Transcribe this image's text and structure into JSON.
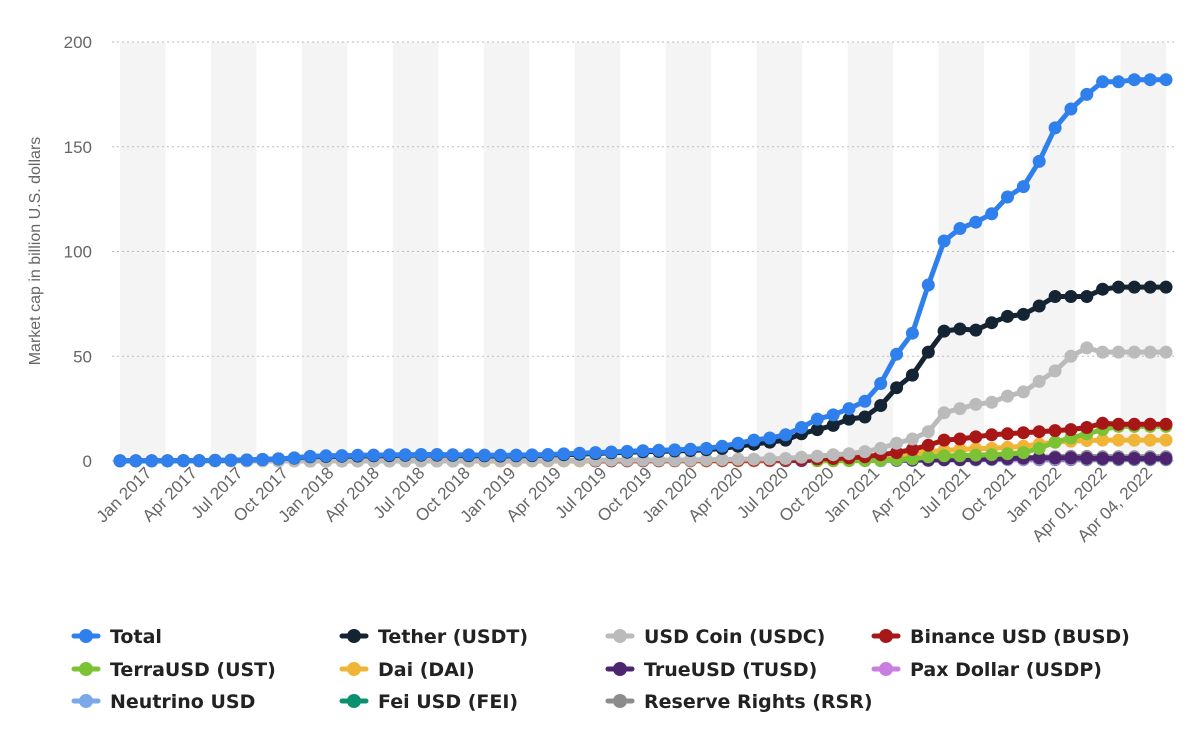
{
  "chart_data": {
    "type": "line",
    "title": "",
    "xlabel": "",
    "ylabel": "Market cap in billion U.S. dollars",
    "ylim": [
      0,
      200
    ],
    "yticks": [
      0,
      50,
      100,
      150,
      200
    ],
    "grid": "horizontal dotted",
    "legend_position": "bottom",
    "x_tick_labels": [
      "Jan 2017",
      "Apr 2017",
      "Jul 2017",
      "Oct 2017",
      "Jan 2018",
      "Apr 2018",
      "Jul 2018",
      "Oct 2018",
      "Jan 2019",
      "Apr 2019",
      "Jul 2019",
      "Oct 2019",
      "Jan 2020",
      "Apr 2020",
      "Jul 2020",
      "Oct 2020",
      "Jan 2021",
      "Apr 2021",
      "Jul 2021",
      "Oct 2021",
      "Jan 2022",
      "Apr 01, 2022",
      "Apr 04, 2022"
    ],
    "x": [
      "Jan 2017",
      "Feb 2017",
      "Mar 2017",
      "Apr 2017",
      "May 2017",
      "Jun 2017",
      "Jul 2017",
      "Aug 2017",
      "Sep 2017",
      "Oct 2017",
      "Nov 2017",
      "Dec 2017",
      "Jan 2018",
      "Feb 2018",
      "Mar 2018",
      "Apr 2018",
      "May 2018",
      "Jun 2018",
      "Jul 2018",
      "Aug 2018",
      "Sep 2018",
      "Oct 2018",
      "Nov 2018",
      "Dec 2018",
      "Jan 2019",
      "Feb 2019",
      "Mar 2019",
      "Apr 2019",
      "May 2019",
      "Jun 2019",
      "Jul 2019",
      "Aug 2019",
      "Sep 2019",
      "Oct 2019",
      "Nov 2019",
      "Dec 2019",
      "Jan 2020",
      "Feb 2020",
      "Mar 2020",
      "Apr 2020",
      "May 2020",
      "Jun 2020",
      "Jul 2020",
      "Aug 2020",
      "Sep 2020",
      "Oct 2020",
      "Nov 2020",
      "Dec 2020",
      "Jan 2021",
      "Feb 2021",
      "Mar 2021",
      "Apr 2021",
      "May 2021",
      "Jun 2021",
      "Jul 2021",
      "Aug 2021",
      "Sep 2021",
      "Oct 2021",
      "Nov 2021",
      "Dec 2021",
      "Jan 2022",
      "Feb 2022",
      "Mar 2022",
      "Apr 01, 2022",
      "Apr 02, 2022",
      "Apr 03, 2022",
      "Apr 04, 2022"
    ],
    "series": [
      {
        "name": "Total",
        "color": "#2f80ed",
        "values": [
          0.1,
          0.1,
          0.1,
          0.1,
          0.2,
          0.2,
          0.3,
          0.4,
          0.5,
          0.7,
          1.0,
          1.5,
          2.2,
          2.5,
          2.6,
          2.7,
          2.8,
          2.9,
          3.0,
          3.1,
          3.1,
          3.0,
          2.9,
          2.8,
          2.7,
          2.8,
          2.9,
          3.1,
          3.4,
          3.7,
          4.0,
          4.3,
          4.6,
          4.9,
          5.1,
          5.3,
          5.6,
          6.0,
          7.0,
          8.5,
          10.0,
          11.0,
          12.5,
          16.0,
          20.0,
          22.0,
          25.0,
          28.5,
          37.0,
          51.0,
          61.0,
          84.0,
          105.0,
          111.0,
          114.0,
          118.0,
          126.0,
          131.0,
          143.0,
          159.0,
          168.0,
          175.0,
          181.0,
          181.0,
          182.0,
          182.0,
          182.0
        ]
      },
      {
        "name": "Tether (USDT)",
        "color": "#142433",
        "values": [
          0.1,
          0.1,
          0.1,
          0.1,
          0.2,
          0.2,
          0.3,
          0.4,
          0.5,
          0.7,
          1.0,
          1.4,
          2.0,
          2.2,
          2.3,
          2.4,
          2.5,
          2.6,
          2.7,
          2.8,
          2.8,
          2.7,
          2.6,
          2.5,
          2.4,
          2.5,
          2.6,
          2.8,
          3.0,
          3.3,
          3.6,
          3.9,
          4.2,
          4.4,
          4.6,
          4.8,
          5.0,
          5.4,
          6.0,
          7.0,
          8.0,
          9.0,
          10.0,
          13.0,
          15.0,
          17.0,
          20.0,
          21.0,
          26.5,
          35.0,
          41.0,
          52.0,
          62.0,
          63.0,
          62.5,
          66.0,
          69.0,
          70.0,
          74.0,
          78.5,
          78.5,
          78.5,
          82.0,
          83.0,
          83.0,
          83.0,
          83.0
        ]
      },
      {
        "name": "USD Coin (USDC)",
        "color": "#bbbbbb",
        "values": [
          0,
          0,
          0,
          0,
          0,
          0,
          0,
          0,
          0,
          0,
          0,
          0,
          0,
          0,
          0,
          0,
          0,
          0,
          0,
          0,
          0,
          0.05,
          0.1,
          0.2,
          0.25,
          0.25,
          0.25,
          0.3,
          0.3,
          0.35,
          0.35,
          0.4,
          0.45,
          0.45,
          0.45,
          0.45,
          0.5,
          0.55,
          0.7,
          0.8,
          0.9,
          1.0,
          1.2,
          1.8,
          2.3,
          3.0,
          3.5,
          4.5,
          6.0,
          8.5,
          10.5,
          14.0,
          23.0,
          25.0,
          27.0,
          28.0,
          31.0,
          33.0,
          38.0,
          43.0,
          50.0,
          54.0,
          52.0,
          52.0,
          52.0,
          52.0,
          52.0
        ]
      },
      {
        "name": "Binance USD (BUSD)",
        "color": "#a81717",
        "values": [
          null,
          null,
          null,
          null,
          null,
          null,
          null,
          null,
          null,
          null,
          null,
          null,
          null,
          null,
          null,
          null,
          null,
          null,
          null,
          null,
          null,
          null,
          null,
          null,
          null,
          null,
          null,
          null,
          null,
          null,
          0.1,
          0.1,
          0.15,
          0.2,
          0.2,
          0.25,
          0.3,
          0.3,
          0.35,
          0.4,
          0.45,
          0.5,
          0.6,
          0.8,
          1.0,
          1.2,
          1.5,
          2.0,
          3.0,
          4.0,
          5.5,
          7.5,
          10.0,
          10.5,
          11.5,
          12.5,
          13.0,
          13.5,
          14.0,
          14.5,
          15.0,
          16.0,
          18.0,
          17.5,
          17.5,
          17.5,
          17.5
        ]
      },
      {
        "name": "TerraUSD (UST)",
        "color": "#7cc235",
        "values": [
          null,
          null,
          null,
          null,
          null,
          null,
          null,
          null,
          null,
          null,
          null,
          null,
          null,
          null,
          null,
          null,
          null,
          null,
          null,
          null,
          null,
          null,
          null,
          null,
          null,
          null,
          null,
          null,
          null,
          null,
          null,
          null,
          null,
          null,
          null,
          null,
          null,
          null,
          null,
          null,
          null,
          null,
          null,
          null,
          0.1,
          0.1,
          0.15,
          0.2,
          0.3,
          0.6,
          1.0,
          2.0,
          2.5,
          2.5,
          2.8,
          3.0,
          3.5,
          4.0,
          6.0,
          9.0,
          11.0,
          13.0,
          15.0,
          16.5,
          16.5,
          16.5,
          16.5
        ]
      },
      {
        "name": "Dai (DAI)",
        "color": "#f0b536",
        "values": [
          null,
          null,
          null,
          null,
          null,
          null,
          null,
          null,
          null,
          null,
          null,
          null,
          0.02,
          0.03,
          0.04,
          0.05,
          0.05,
          0.06,
          0.06,
          0.06,
          0.07,
          0.07,
          0.07,
          0.07,
          0.08,
          0.08,
          0.08,
          0.09,
          0.09,
          0.1,
          0.1,
          0.1,
          0.1,
          0.1,
          0.1,
          0.1,
          0.1,
          0.1,
          0.12,
          0.15,
          0.2,
          0.3,
          0.5,
          0.8,
          1.2,
          1.5,
          1.8,
          2.0,
          2.5,
          3.0,
          3.5,
          4.5,
          5.0,
          5.5,
          5.8,
          6.0,
          6.5,
          7.0,
          8.0,
          9.0,
          9.5,
          9.8,
          10.0,
          10.0,
          10.0,
          10.0,
          10.0
        ]
      },
      {
        "name": "TrueUSD (TUSD)",
        "color": "#4d2470",
        "values": [
          null,
          null,
          null,
          null,
          null,
          null,
          null,
          null,
          null,
          null,
          null,
          null,
          0.02,
          0.03,
          0.04,
          0.05,
          0.05,
          0.06,
          0.06,
          0.06,
          0.07,
          0.1,
          0.12,
          0.15,
          0.18,
          0.2,
          0.2,
          0.2,
          0.2,
          0.2,
          0.2,
          0.2,
          0.2,
          0.2,
          0.2,
          0.2,
          0.2,
          0.2,
          0.2,
          0.2,
          0.2,
          0.2,
          0.2,
          0.3,
          0.5,
          0.8,
          0.6,
          0.5,
          0.5,
          0.5,
          0.5,
          0.5,
          0.6,
          0.7,
          0.8,
          1.0,
          1.2,
          1.4,
          1.5,
          1.5,
          1.5,
          1.3,
          1.2,
          1.2,
          1.2,
          1.2,
          1.2
        ]
      },
      {
        "name": "Pax Dollar (USDP)",
        "color": "#c77ee0",
        "values": [
          null,
          null,
          null,
          null,
          null,
          null,
          null,
          null,
          null,
          null,
          null,
          null,
          null,
          null,
          null,
          null,
          null,
          null,
          null,
          null,
          null,
          0.02,
          0.05,
          0.08,
          0.1,
          0.1,
          0.1,
          0.1,
          0.1,
          0.12,
          0.15,
          0.15,
          0.15,
          0.15,
          0.15,
          0.15,
          0.15,
          0.15,
          0.2,
          0.2,
          0.2,
          0.2,
          0.2,
          0.2,
          0.25,
          0.3,
          0.3,
          0.3,
          0.4,
          0.5,
          0.6,
          0.7,
          0.8,
          0.9,
          0.9,
          0.9,
          0.9,
          0.9,
          0.9,
          0.9,
          0.9,
          0.9,
          0.9,
          0.9,
          0.9,
          0.9,
          0.9
        ]
      },
      {
        "name": "Neutrino USD",
        "color": "#7aa8e8",
        "values": [
          null,
          null,
          null,
          null,
          null,
          null,
          null,
          null,
          null,
          null,
          null,
          null,
          null,
          null,
          null,
          null,
          null,
          null,
          null,
          null,
          null,
          null,
          null,
          null,
          null,
          null,
          null,
          null,
          null,
          null,
          null,
          null,
          null,
          null,
          null,
          null,
          null,
          null,
          null,
          null,
          null,
          null,
          null,
          null,
          null,
          null,
          null,
          null,
          0.1,
          0.2,
          0.3,
          0.4,
          0.5,
          0.5,
          0.5,
          0.6,
          0.6,
          0.7,
          0.8,
          0.9,
          1.0,
          1.0,
          1.0,
          1.0,
          1.0,
          1.0,
          1.0
        ]
      },
      {
        "name": "Fei USD (FEI)",
        "color": "#0c9170",
        "values": [
          null,
          null,
          null,
          null,
          null,
          null,
          null,
          null,
          null,
          null,
          null,
          null,
          null,
          null,
          null,
          null,
          null,
          null,
          null,
          null,
          null,
          null,
          null,
          null,
          null,
          null,
          null,
          null,
          null,
          null,
          null,
          null,
          null,
          null,
          null,
          null,
          null,
          null,
          null,
          null,
          null,
          null,
          null,
          null,
          null,
          null,
          null,
          null,
          null,
          null,
          null,
          0.3,
          1.5,
          1.5,
          1.0,
          0.8,
          0.7,
          0.6,
          0.6,
          0.6,
          0.6,
          0.6,
          0.6,
          0.6,
          0.6,
          0.6,
          0.6
        ]
      },
      {
        "name": "Reserve Rights (RSR)",
        "color": "#8c8c8c",
        "values": [
          null,
          null,
          null,
          null,
          null,
          null,
          null,
          null,
          null,
          null,
          null,
          null,
          null,
          null,
          null,
          null,
          null,
          null,
          null,
          null,
          null,
          null,
          null,
          null,
          null,
          null,
          null,
          null,
          null,
          null,
          0.05,
          0.05,
          0.05,
          0.05,
          0.05,
          0.05,
          0.05,
          0.1,
          0.1,
          0.1,
          0.1,
          0.2,
          0.2,
          0.3,
          0.3,
          0.4,
          0.5,
          0.6,
          0.8,
          1.0,
          1.2,
          1.5,
          1.5,
          1.4,
          1.3,
          1.2,
          1.2,
          1.5,
          1.8,
          2.0,
          2.2,
          2.2,
          2.0,
          2.0,
          2.0,
          2.0,
          2.0
        ]
      }
    ]
  }
}
